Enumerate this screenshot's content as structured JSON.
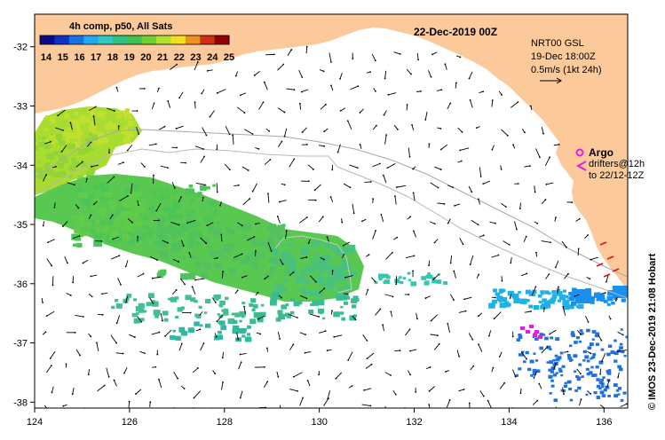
{
  "map": {
    "date_title": "22-Dec-2019 00Z",
    "colorbar": {
      "title": "4h comp, p50, All Sats",
      "labels": [
        "14",
        "15",
        "16",
        "17",
        "18",
        "19",
        "20",
        "21",
        "22",
        "23",
        "24",
        "25"
      ],
      "colors": [
        "#0a0a8c",
        "#1030c8",
        "#1870e8",
        "#20a8f0",
        "#30c8c0",
        "#30c080",
        "#40c050",
        "#70d030",
        "#b0e030",
        "#f0e020",
        "#f09020",
        "#d03010",
        "#900000"
      ]
    },
    "current_info": {
      "line1": "NRT00 GSL",
      "line2": "19-Dec 18:00Z",
      "line3": "0.5m/s (1kt 24h)"
    },
    "argo": {
      "label": "Argo",
      "drifter_line1": "drifters@12h",
      "drifter_line2": "to 22/12-12Z",
      "color": "#e020e0"
    },
    "credit": "© IMOS 23-Dec-2019 21:08 Hobart",
    "lon_ticks": [
      124,
      126,
      128,
      130,
      132,
      134,
      136
    ],
    "lat_ticks": [
      -32,
      -33,
      -34,
      -35,
      -36,
      -37,
      -38
    ],
    "lon_range": [
      124,
      136.5
    ],
    "lat_range": [
      -31.45,
      -38.1
    ],
    "land_color": "#fbc99a"
  }
}
